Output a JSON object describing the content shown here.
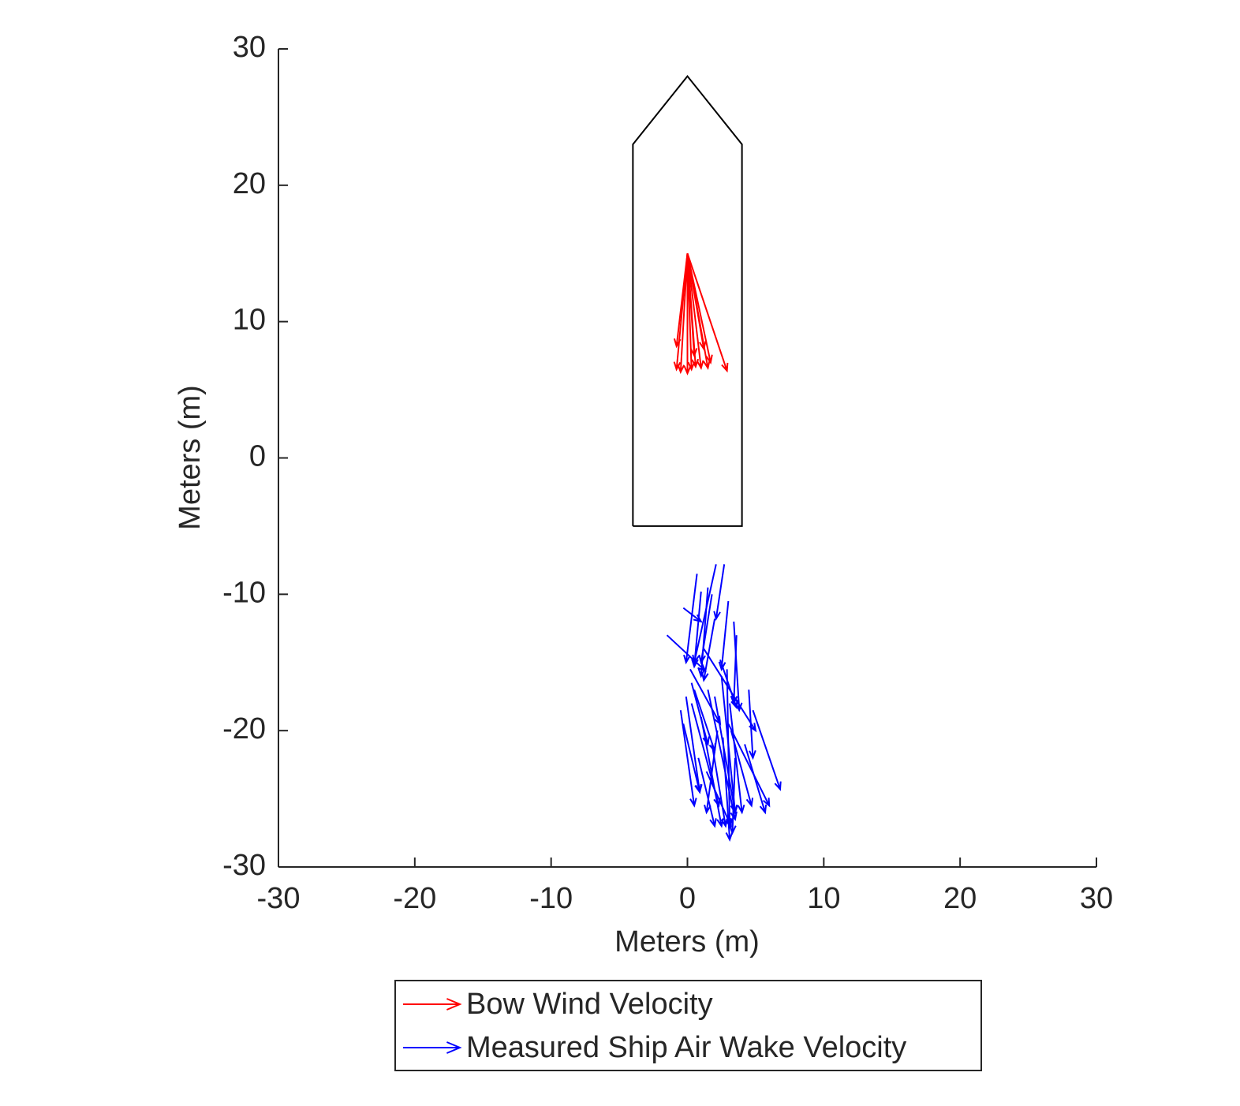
{
  "chart_data": {
    "type": "quiver",
    "xlabel": "Meters (m)",
    "ylabel": "Meters (m)",
    "xlim": [
      -30,
      30
    ],
    "ylim": [
      -30,
      30
    ],
    "xticks": [
      -30,
      -20,
      -10,
      0,
      10,
      20,
      30
    ],
    "yticks": [
      -30,
      -20,
      -10,
      0,
      10,
      20,
      30
    ],
    "legend": "south outside",
    "outline": {
      "color": "#000000",
      "x": [
        -4,
        -4,
        0,
        4,
        4,
        -4
      ],
      "y": [
        -5,
        23,
        28,
        23,
        -5,
        -5
      ]
    },
    "series": [
      {
        "name": "Bow Wind Velocity",
        "color": "#ff0000",
        "x": [
          0,
          0,
          0,
          0,
          0,
          0,
          0,
          0,
          0,
          0,
          0,
          0
        ],
        "y": [
          15,
          15,
          15,
          15,
          15,
          15,
          15,
          15,
          15,
          15,
          15,
          15
        ],
        "u": [
          -0.8,
          -0.5,
          0,
          0.3,
          0.6,
          1,
          1.5,
          1.7,
          0.5,
          -0.8,
          1.2,
          2.9
        ],
        "v": [
          -8.5,
          -8.7,
          -8.8,
          -8.5,
          -8.3,
          -8.4,
          -8.4,
          -8,
          -7.5,
          -6.8,
          -7,
          -8.6
        ]
      },
      {
        "name": "Measured Ship Air Wake Velocity",
        "color": "#0000ff",
        "x": [
          -1.5,
          -0.3,
          0.7,
          1,
          2.1,
          2.7,
          1.5,
          1.8,
          2,
          3,
          3.4,
          3.6,
          1.2,
          0.2,
          0.5,
          -0.5,
          -0.3,
          -0.1,
          0.3,
          1,
          1.5,
          2,
          2.5,
          2.9,
          3.1,
          2.6,
          3,
          4.5,
          4.8,
          4.2,
          3.5,
          1.8,
          2.2,
          0.8,
          1.4,
          3.2,
          0.3,
          2.4
        ],
        "y": [
          -13,
          -11,
          -8.5,
          -9.8,
          -7.8,
          -7.8,
          -9.5,
          -10,
          -11.8,
          -10.5,
          -12,
          -13,
          -14,
          -15.5,
          -17,
          -18.5,
          -19.5,
          -17.5,
          -18,
          -19,
          -17,
          -17.5,
          -16,
          -15.5,
          -18,
          -20.5,
          -19.5,
          -17,
          -18.5,
          -21,
          -22,
          -21,
          -20,
          -22,
          -23,
          -20,
          -16.5,
          -14.8
        ],
        "u": [
          2.8,
          1.3,
          -0.8,
          -0.5,
          -1.6,
          -0.6,
          -0.5,
          -0.8,
          -0.8,
          -0.5,
          0.4,
          -0.2,
          3.8,
          2.2,
          1.5,
          1,
          1.2,
          1,
          2,
          1.5,
          2,
          1.5,
          1,
          0.2,
          0.9,
          0.5,
          3,
          0.3,
          2,
          1.5,
          -0.2,
          1,
          -0.8,
          1.2,
          1.8,
          1.5,
          1.2,
          1.2
        ],
        "v": [
          -2.6,
          -1,
          -6.5,
          -5.5,
          -7.2,
          -4,
          -6.5,
          -5,
          -4.5,
          -5,
          -6.5,
          -5,
          -6,
          -4,
          -4.5,
          -7,
          -5,
          -7,
          -7.5,
          -8,
          -9.5,
          -8.5,
          -10,
          -11.5,
          -8,
          -7.5,
          -6,
          -5,
          -5.8,
          -5,
          -5.5,
          -6,
          -6,
          -5,
          -4,
          -5.5,
          -4.5,
          -3.5
        ]
      }
    ]
  }
}
